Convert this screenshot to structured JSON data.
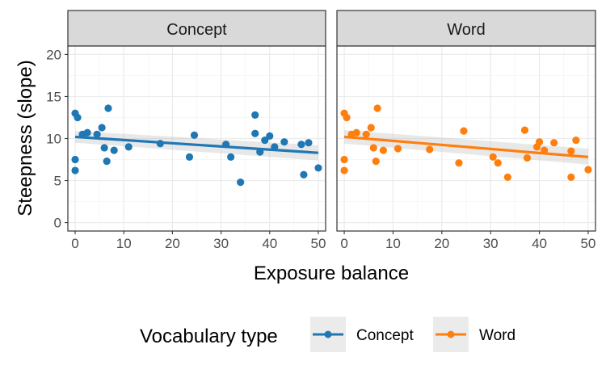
{
  "chart_data": {
    "type": "scatter",
    "ylabel": "Steepness (slope)",
    "xlabel": "Exposure balance",
    "xlim": [
      -1.5,
      51.5
    ],
    "ylim": [
      -1,
      21
    ],
    "x_ticks": [
      0,
      10,
      20,
      30,
      40,
      50
    ],
    "y_ticks": [
      0,
      5,
      10,
      15,
      20
    ],
    "grid": true,
    "legend": {
      "title": "Vocabulary type",
      "position": "bottom",
      "entries": [
        "Concept",
        "Word"
      ]
    },
    "colors": {
      "Concept": "#1f77b4",
      "Word": "#ff7f0e"
    },
    "panels": [
      {
        "title": "Concept",
        "series": "Concept",
        "trend": {
          "x": [
            0,
            50
          ],
          "y": [
            10.2,
            8.3
          ]
        },
        "band": {
          "lower_at_x0": 9.5,
          "upper_at_x0": 10.9,
          "lower_at_x50": 7.4,
          "upper_at_x50": 9.2
        },
        "points": [
          [
            0,
            13.0
          ],
          [
            0.5,
            12.5
          ],
          [
            0,
            7.5
          ],
          [
            0,
            6.2
          ],
          [
            1.5,
            10.5
          ],
          [
            2.5,
            10.7
          ],
          [
            4.5,
            10.5
          ],
          [
            5.5,
            11.3
          ],
          [
            6,
            8.9
          ],
          [
            6.5,
            7.3
          ],
          [
            6.8,
            13.6
          ],
          [
            8,
            8.6
          ],
          [
            11,
            9.0
          ],
          [
            17.5,
            9.4
          ],
          [
            23.5,
            7.8
          ],
          [
            24.5,
            10.4
          ],
          [
            31,
            9.3
          ],
          [
            32,
            7.8
          ],
          [
            34,
            4.8
          ],
          [
            37,
            12.8
          ],
          [
            37,
            10.6
          ],
          [
            38,
            8.4
          ],
          [
            39,
            9.8
          ],
          [
            40,
            10.3
          ],
          [
            41,
            9.0
          ],
          [
            43,
            9.6
          ],
          [
            46.5,
            9.3
          ],
          [
            47,
            5.7
          ],
          [
            48,
            9.5
          ],
          [
            50,
            6.5
          ]
        ]
      },
      {
        "title": "Word",
        "series": "Word",
        "trend": {
          "x": [
            0,
            50
          ],
          "y": [
            10.2,
            7.8
          ]
        },
        "band": {
          "lower_at_x0": 9.4,
          "upper_at_x0": 11.0,
          "lower_at_x50": 6.9,
          "upper_at_x50": 8.8
        },
        "points": [
          [
            0,
            13.0
          ],
          [
            0.5,
            12.5
          ],
          [
            0,
            7.5
          ],
          [
            0,
            6.2
          ],
          [
            1.5,
            10.5
          ],
          [
            2.5,
            10.7
          ],
          [
            4.5,
            10.5
          ],
          [
            5.5,
            11.3
          ],
          [
            6,
            8.9
          ],
          [
            6.5,
            7.3
          ],
          [
            6.8,
            13.6
          ],
          [
            8,
            8.6
          ],
          [
            11,
            8.8
          ],
          [
            17.5,
            8.7
          ],
          [
            23.5,
            7.1
          ],
          [
            24.5,
            10.9
          ],
          [
            30.5,
            7.8
          ],
          [
            31.5,
            7.1
          ],
          [
            33.5,
            5.4
          ],
          [
            37,
            11.0
          ],
          [
            37.5,
            7.7
          ],
          [
            39.5,
            9.0
          ],
          [
            40,
            9.6
          ],
          [
            41,
            8.6
          ],
          [
            43,
            9.5
          ],
          [
            46.5,
            8.5
          ],
          [
            46.5,
            5.4
          ],
          [
            47.5,
            9.8
          ],
          [
            50,
            6.3
          ]
        ]
      }
    ]
  }
}
